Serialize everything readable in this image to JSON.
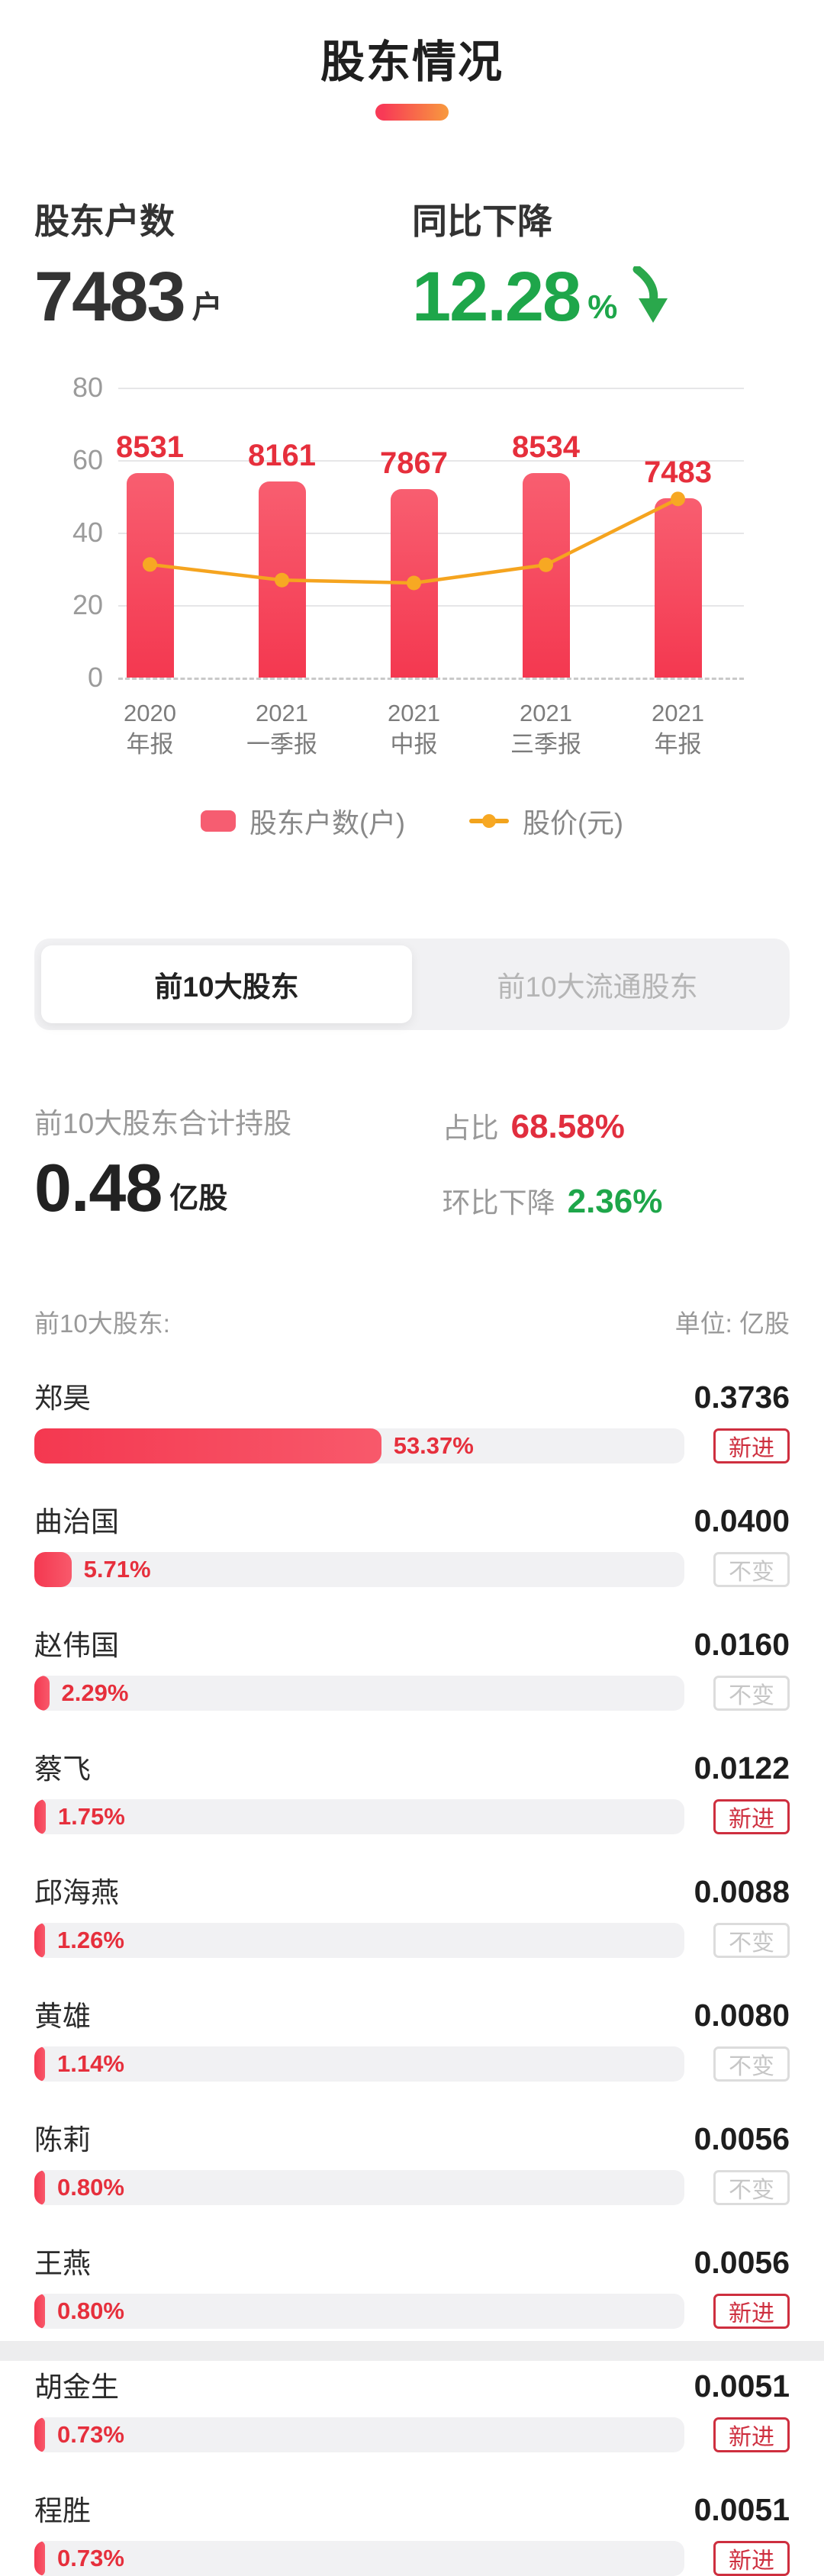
{
  "page": {
    "title": "股东情况"
  },
  "stats": {
    "holders_label": "股东户数",
    "holders_value": "7483",
    "holders_unit": "户",
    "yoy_label": "同比下降",
    "yoy_value": "12.28",
    "yoy_unit": "%"
  },
  "chart_data": {
    "type": "bar",
    "title": "",
    "categories": [
      "2020 年报",
      "2021 一季报",
      "2021 中报",
      "2021 三季报",
      "2021 年报"
    ],
    "categories_two_line": [
      [
        "2020",
        "年报"
      ],
      [
        "2021",
        "一季报"
      ],
      [
        "2021",
        "中报"
      ],
      [
        "2021",
        "三季报"
      ],
      [
        "2021",
        "年报"
      ]
    ],
    "series": [
      {
        "name": "股东户数(户)",
        "type": "bar",
        "values": [
          8531,
          8161,
          7867,
          8534,
          7483
        ]
      },
      {
        "name": "股价(元)",
        "type": "line",
        "values": [
          31.2,
          26.9,
          26.1,
          31.1,
          49.3
        ]
      }
    ],
    "ylim": [
      0,
      80
    ],
    "yticks": [
      80,
      60,
      40,
      20,
      0
    ],
    "bar_axis_divisor": 151,
    "grid": true,
    "legend_position": "bottom",
    "colors": {
      "bar": "#f84f63",
      "line": "#f5a41f",
      "data_label": "#e62f3c"
    }
  },
  "legend": [
    {
      "label": "股东户数(户)"
    },
    {
      "label": "股价(元)"
    }
  ],
  "tabs": {
    "active": "前10大股东",
    "inactive": "前10大流通股东"
  },
  "summary": {
    "total_label": "前10大股东合计持股",
    "total_value": "0.48",
    "total_unit": "亿股",
    "ratio_label": "占比",
    "ratio_value": "68.58%",
    "mom_label": "环比下降",
    "mom_value": "2.36%"
  },
  "list": {
    "header_left": "前10大股东:",
    "header_right": "单位: 亿股",
    "rows": [
      {
        "name": "郑昊",
        "pct": 53.37,
        "pct_text": "53.37%",
        "value": "0.3736",
        "badge": "新进",
        "badge_type": "new"
      },
      {
        "name": "曲治国",
        "pct": 5.71,
        "pct_text": "5.71%",
        "value": "0.0400",
        "badge": "不变",
        "badge_type": "same"
      },
      {
        "name": "赵伟国",
        "pct": 2.29,
        "pct_text": "2.29%",
        "value": "0.0160",
        "badge": "不变",
        "badge_type": "same"
      },
      {
        "name": "蔡飞",
        "pct": 1.75,
        "pct_text": "1.75%",
        "value": "0.0122",
        "badge": "新进",
        "badge_type": "new"
      },
      {
        "name": "邱海燕",
        "pct": 1.26,
        "pct_text": "1.26%",
        "value": "0.0088",
        "badge": "不变",
        "badge_type": "same"
      },
      {
        "name": "黄雄",
        "pct": 1.14,
        "pct_text": "1.14%",
        "value": "0.0080",
        "badge": "不变",
        "badge_type": "same"
      },
      {
        "name": "陈莉",
        "pct": 0.8,
        "pct_text": "0.80%",
        "value": "0.0056",
        "badge": "不变",
        "badge_type": "same"
      },
      {
        "name": "王燕",
        "pct": 0.8,
        "pct_text": "0.80%",
        "value": "0.0056",
        "badge": "新进",
        "badge_type": "new"
      },
      {
        "name": "胡金生",
        "pct": 0.73,
        "pct_text": "0.73%",
        "value": "0.0051",
        "badge": "新进",
        "badge_type": "new"
      },
      {
        "name": "程胜",
        "pct": 0.73,
        "pct_text": "0.73%",
        "value": "0.0051",
        "badge": "新进",
        "badge_type": "new"
      }
    ]
  }
}
